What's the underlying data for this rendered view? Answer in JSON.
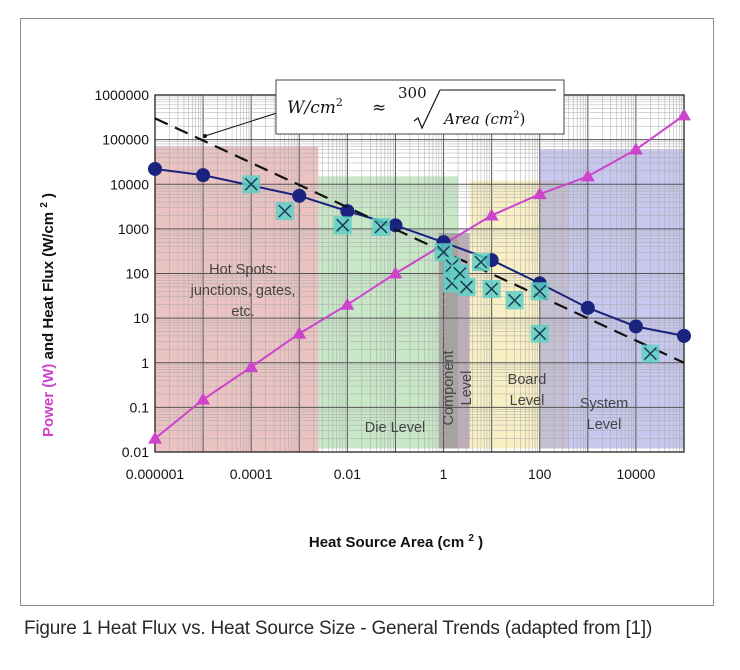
{
  "chart_data": {
    "type": "scatter",
    "x_scale": "log",
    "y_scale": "log",
    "xlim": [
      1e-06,
      100000
    ],
    "ylim": [
      0.01,
      1000000
    ],
    "grid": true,
    "x_ticks": [
      "0.000001",
      "0.0001",
      "0.01",
      "1",
      "100",
      "10000"
    ],
    "y_ticks": [
      "0.01",
      "0.1",
      "1",
      "10",
      "100",
      "1000",
      "10000",
      "100000",
      "1000000"
    ],
    "xlabel": "Heat Source Area (cm",
    "xlabel_sup": "2",
    "xlabel_close": ")",
    "ylabel": {
      "part1": "Power (W)",
      "part2": " and ",
      "part3": "Heat Flux (W/cm",
      "sup": "2",
      "close": ")"
    },
    "equation": {
      "lhs": "W/cm",
      "lhs_sup": "2",
      "approx": "≈",
      "numerator": "300",
      "radicand": "Area (cm",
      "radicand_sup": "2",
      "radicand_close": ")"
    },
    "regions": [
      {
        "lines": [
          "Hot Spots:",
          "junctions, gates,",
          "etc."
        ],
        "color": "#d98888",
        "x_range": [
          1e-06,
          0.0025
        ]
      },
      {
        "lines": [
          "Die Level"
        ],
        "color": "#8fcf8f",
        "x_range": [
          0.0025,
          2
        ]
      },
      {
        "lines": [
          "Component",
          "Level"
        ],
        "color": "#8a6a80",
        "x_range": [
          0.8,
          3.5
        ]
      },
      {
        "lines": [
          "Board",
          "Level"
        ],
        "color": "#f2e08a",
        "x_range": [
          3.5,
          400
        ]
      },
      {
        "lines": [
          "System",
          "Level"
        ],
        "color": "#8f8fe0",
        "x_range": [
          100,
          100000
        ]
      }
    ],
    "series": [
      {
        "kind": "power",
        "color": "#cc44cc",
        "marker": "triangle",
        "points": [
          [
            1e-06,
            0.02
          ],
          [
            1e-05,
            0.15
          ],
          [
            0.0001,
            0.8
          ],
          [
            0.001,
            4.5
          ],
          [
            0.01,
            20
          ],
          [
            0.1,
            100
          ],
          [
            1,
            450
          ],
          [
            10,
            2000
          ],
          [
            100,
            6000
          ],
          [
            1000,
            15000
          ],
          [
            10000,
            60000
          ],
          [
            100000,
            350000
          ]
        ]
      },
      {
        "kind": "heat-flux",
        "color": "#1a237e",
        "marker": "circle",
        "points": [
          [
            1e-06,
            22000
          ],
          [
            1e-05,
            16000
          ],
          [
            0.001,
            5500
          ],
          [
            0.01,
            2500
          ],
          [
            0.1,
            1200
          ],
          [
            1,
            500
          ],
          [
            10,
            200
          ],
          [
            100,
            60
          ],
          [
            1000,
            17
          ],
          [
            10000,
            6.5
          ],
          [
            100000,
            4
          ]
        ]
      },
      {
        "kind": "trend",
        "color": "#111111",
        "style": "dashed",
        "points": [
          [
            1e-06,
            300000
          ],
          [
            100000,
            1
          ]
        ]
      },
      {
        "kind": "data-points",
        "color": "#5fd0c4",
        "marker": "x-square",
        "points": [
          [
            0.0001,
            10000
          ],
          [
            0.0005,
            2500
          ],
          [
            0.008,
            1200
          ],
          [
            0.05,
            1100
          ],
          [
            1,
            300
          ],
          [
            1.5,
            150
          ],
          [
            1.5,
            60
          ],
          [
            2.2,
            100
          ],
          [
            3,
            50
          ],
          [
            6,
            180
          ],
          [
            10,
            45
          ],
          [
            30,
            25
          ],
          [
            100,
            40
          ],
          [
            100,
            4.5
          ],
          [
            20000,
            1.6
          ]
        ]
      }
    ]
  },
  "caption": "Figure 1 Heat Flux vs. Heat Source Size - General Trends (adapted from [1])"
}
